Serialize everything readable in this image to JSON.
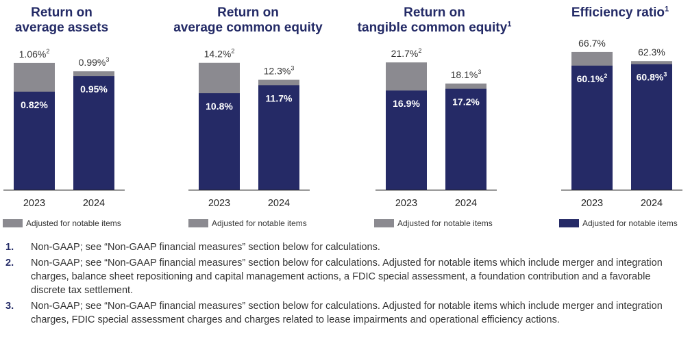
{
  "colors": {
    "base": "#252a66",
    "adjusted": "#8b8a90",
    "axis": "#222222",
    "title": "#232a66"
  },
  "chart_data": [
    {
      "type": "bar",
      "title": "Return on average assets",
      "title_lines": [
        "Return on",
        "average assets"
      ],
      "title_footnote": "",
      "categories": [
        "2023",
        "2024"
      ],
      "series": [
        {
          "values": [
            0.82,
            0.95
          ],
          "labels": [
            "0.82%",
            "0.95%"
          ]
        },
        {
          "name": "Adjusted for notable items",
          "values": [
            1.06,
            0.99
          ],
          "labels": [
            "1.06%",
            "0.99%"
          ],
          "footnotes": [
            "2",
            "3"
          ]
        }
      ],
      "ymax": 1.3,
      "legend": {
        "label": "Adjusted for notable items",
        "color": "#8b8a90"
      }
    },
    {
      "type": "bar",
      "title": "Return on average common equity",
      "title_lines": [
        "Return on",
        "average common equity"
      ],
      "title_footnote": "",
      "categories": [
        "2023",
        "2024"
      ],
      "series": [
        {
          "values": [
            10.8,
            11.7
          ],
          "labels": [
            "10.8%",
            "11.7%"
          ]
        },
        {
          "name": "Adjusted for notable items",
          "values": [
            14.2,
            12.3
          ],
          "labels": [
            "14.2%",
            "12.3%"
          ],
          "footnotes": [
            "2",
            "3"
          ]
        }
      ],
      "ymax": 17.4,
      "legend": {
        "label": "Adjusted for notable items",
        "color": "#8b8a90"
      }
    },
    {
      "type": "bar",
      "title": "Return on tangible common equity",
      "title_lines": [
        "Return on",
        "tangible common equity"
      ],
      "title_footnote": "1",
      "categories": [
        "2023",
        "2024"
      ],
      "series": [
        {
          "values": [
            16.9,
            17.2
          ],
          "labels": [
            "16.9%",
            "17.2%"
          ]
        },
        {
          "name": "Adjusted for notable items",
          "values": [
            21.7,
            18.1
          ],
          "labels": [
            "21.7%",
            "18.1%"
          ],
          "footnotes": [
            "2",
            "3"
          ]
        }
      ],
      "ymax": 26.5,
      "legend": {
        "label": "Adjusted for notable items",
        "color": "#8b8a90"
      }
    },
    {
      "type": "bar",
      "title": "Efficiency ratio",
      "title_lines": [
        "Efficiency ratio"
      ],
      "title_footnote": "1",
      "categories": [
        "2023",
        "2024"
      ],
      "series": [
        {
          "name": "Adjusted for notable items",
          "values": [
            60.1,
            60.8
          ],
          "labels": [
            "60.1%",
            "60.8%"
          ],
          "footnotes": [
            "2",
            "3"
          ]
        },
        {
          "values": [
            66.7,
            62.3
          ],
          "labels": [
            "66.7%",
            "62.3%"
          ]
        }
      ],
      "ymax": 75.3,
      "legend": {
        "label": "Adjusted for notable items",
        "color": "#252a66"
      }
    }
  ],
  "footnotes": [
    {
      "num": "1.",
      "text": "Non-GAAP; see “Non-GAAP financial measures” section below for calculations."
    },
    {
      "num": "2.",
      "text": "Non-GAAP; see “Non-GAAP financial measures” section below for calculations. Adjusted for notable items which include merger and integration charges, balance sheet repositioning and capital management actions, a FDIC special assessment, a foundation contribution and a favorable discrete tax settlement."
    },
    {
      "num": "3.",
      "text": "Non-GAAP; see “Non-GAAP financial measures” section below for calculations. Adjusted for notable items which include merger and integration charges, FDIC special assessment charges and charges related to lease impairments and operational efficiency actions."
    }
  ]
}
